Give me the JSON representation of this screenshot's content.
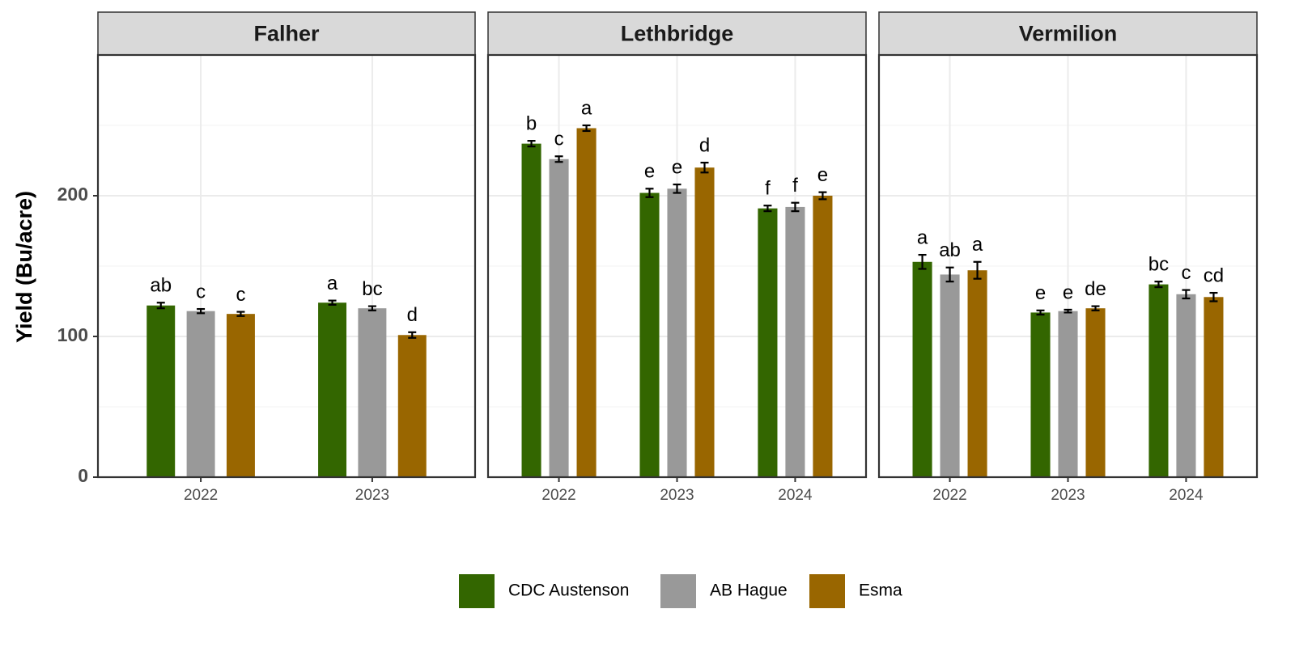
{
  "chart_data": [
    {
      "type": "bar",
      "title": "Falher",
      "ylabel": "Yield (Bu/acre)",
      "categories": [
        "2022",
        "2023"
      ],
      "ylim": [
        0,
        300
      ],
      "yticks": [
        0,
        100,
        200
      ],
      "yminor_ticks": [
        50,
        150,
        250
      ],
      "grid": true,
      "series": [
        {
          "name": "CDC Austenson",
          "color": "#336600",
          "values": [
            122,
            124
          ],
          "errors": [
            2,
            1.5
          ],
          "letters": [
            "ab",
            "a"
          ]
        },
        {
          "name": "AB Hague",
          "color": "#999999",
          "values": [
            118,
            120
          ],
          "errors": [
            1.5,
            1.5
          ],
          "letters": [
            "c",
            "bc"
          ]
        },
        {
          "name": "Esma",
          "color": "#996600",
          "values": [
            116,
            101
          ],
          "errors": [
            1.5,
            2
          ],
          "letters": [
            "c",
            "d"
          ]
        }
      ]
    },
    {
      "type": "bar",
      "title": "Lethbridge",
      "categories": [
        "2022",
        "2023",
        "2024"
      ],
      "ylim": [
        0,
        300
      ],
      "yticks": [
        0,
        100,
        200
      ],
      "yminor_ticks": [
        50,
        150,
        250
      ],
      "grid": true,
      "series": [
        {
          "name": "CDC Austenson",
          "color": "#336600",
          "values": [
            237,
            202,
            191
          ],
          "errors": [
            2,
            3,
            2
          ],
          "letters": [
            "b",
            "e",
            "f"
          ]
        },
        {
          "name": "AB Hague",
          "color": "#999999",
          "values": [
            226,
            205,
            192
          ],
          "errors": [
            2,
            3,
            3
          ],
          "letters": [
            "c",
            "e",
            "f"
          ]
        },
        {
          "name": "Esma",
          "color": "#996600",
          "values": [
            248,
            220,
            200
          ],
          "errors": [
            2,
            3.5,
            2.5
          ],
          "letters": [
            "a",
            "d",
            "e"
          ]
        }
      ]
    },
    {
      "type": "bar",
      "title": "Vermilion",
      "categories": [
        "2022",
        "2023",
        "2024"
      ],
      "ylim": [
        0,
        300
      ],
      "yticks": [
        0,
        100,
        200
      ],
      "yminor_ticks": [
        50,
        150,
        250
      ],
      "grid": true,
      "series": [
        {
          "name": "CDC Austenson",
          "color": "#336600",
          "values": [
            153,
            117,
            137
          ],
          "errors": [
            5,
            1.5,
            2
          ],
          "letters": [
            "a",
            "e",
            "bc"
          ]
        },
        {
          "name": "AB Hague",
          "color": "#999999",
          "values": [
            144,
            118,
            130
          ],
          "errors": [
            5,
            1,
            3
          ],
          "letters": [
            "ab",
            "e",
            "c"
          ]
        },
        {
          "name": "Esma",
          "color": "#996600",
          "values": [
            147,
            120,
            128
          ],
          "errors": [
            6,
            1.5,
            3
          ],
          "letters": [
            "a",
            "de",
            "cd"
          ]
        }
      ]
    }
  ]
}
